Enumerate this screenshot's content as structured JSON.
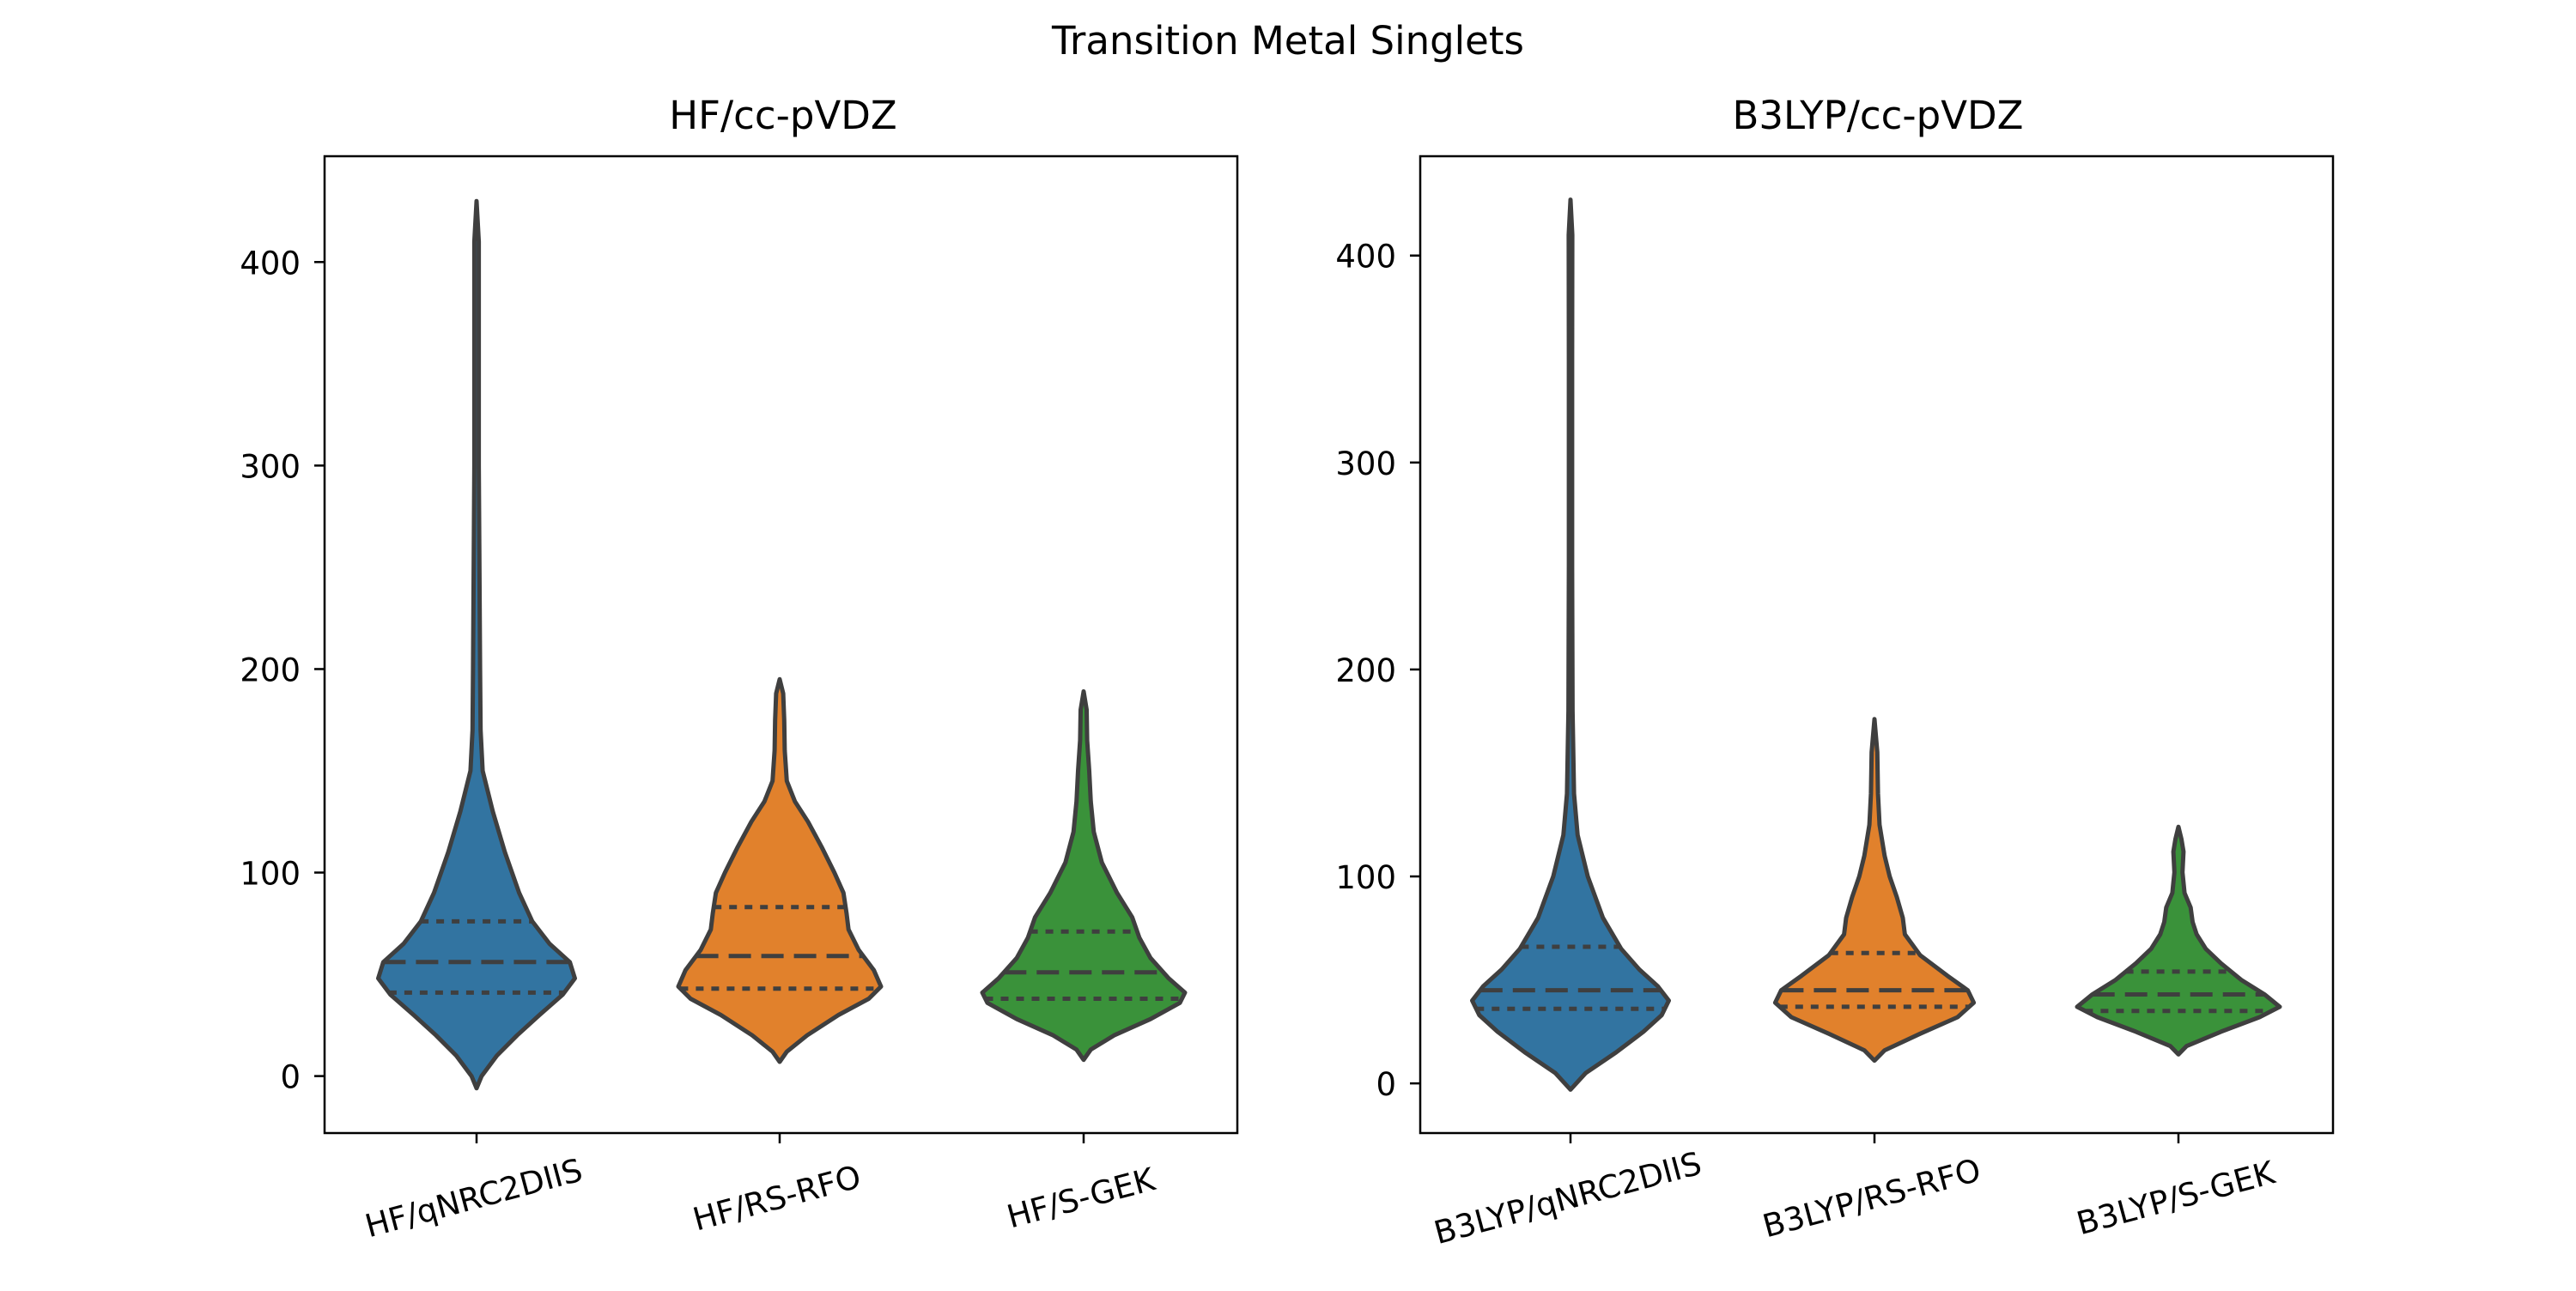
{
  "figure_title": "Transition Metal Singlets",
  "chart_data": [
    {
      "type": "violin",
      "title": "HF/cc-pVDZ",
      "xlabel": "",
      "ylabel": "",
      "ylim": [
        -28,
        452
      ],
      "yticks": [
        0,
        100,
        200,
        300,
        400
      ],
      "grid": false,
      "legend": "none",
      "categories": [
        "HF/qNRC2DIIS",
        "HF/RS-RFO",
        "HF/S-GEK"
      ],
      "violins": [
        {
          "category": "HF/qNRC2DIIS",
          "color": "#3274a1",
          "min": -6,
          "max": 430,
          "q1": 41,
          "median": 56,
          "q3": 76,
          "profile": [
            [
              -6,
              0
            ],
            [
              0,
              0.05
            ],
            [
              10,
              0.2
            ],
            [
              20,
              0.4
            ],
            [
              30,
              0.62
            ],
            [
              40,
              0.85
            ],
            [
              48,
              0.97
            ],
            [
              56,
              0.92
            ],
            [
              65,
              0.72
            ],
            [
              76,
              0.55
            ],
            [
              90,
              0.42
            ],
            [
              110,
              0.28
            ],
            [
              130,
              0.16
            ],
            [
              150,
              0.06
            ],
            [
              170,
              0.04
            ],
            [
              200,
              0.035
            ],
            [
              240,
              0.03
            ],
            [
              300,
              0.022
            ],
            [
              360,
              0.022
            ],
            [
              410,
              0.022
            ],
            [
              430,
              0
            ]
          ]
        },
        {
          "category": "HF/RS-RFO",
          "color": "#e1812c",
          "min": 7,
          "max": 195,
          "q1": 43,
          "median": 59,
          "q3": 83,
          "profile": [
            [
              7,
              0
            ],
            [
              12,
              0.07
            ],
            [
              20,
              0.27
            ],
            [
              30,
              0.58
            ],
            [
              38,
              0.88
            ],
            [
              44,
              1.0
            ],
            [
              52,
              0.93
            ],
            [
              62,
              0.78
            ],
            [
              72,
              0.68
            ],
            [
              80,
              0.66
            ],
            [
              90,
              0.63
            ],
            [
              100,
              0.54
            ],
            [
              112,
              0.42
            ],
            [
              125,
              0.28
            ],
            [
              135,
              0.15
            ],
            [
              145,
              0.07
            ],
            [
              160,
              0.05
            ],
            [
              175,
              0.045
            ],
            [
              188,
              0.035
            ],
            [
              195,
              0
            ]
          ]
        },
        {
          "category": "HF/S-GEK",
          "color": "#3a923a",
          "min": 8,
          "max": 189,
          "q1": 38,
          "median": 51,
          "q3": 71,
          "profile": [
            [
              8,
              0
            ],
            [
              13,
              0.07
            ],
            [
              20,
              0.3
            ],
            [
              28,
              0.66
            ],
            [
              36,
              0.95
            ],
            [
              41,
              1.0
            ],
            [
              48,
              0.84
            ],
            [
              58,
              0.66
            ],
            [
              68,
              0.55
            ],
            [
              78,
              0.48
            ],
            [
              90,
              0.33
            ],
            [
              105,
              0.18
            ],
            [
              120,
              0.1
            ],
            [
              135,
              0.07
            ],
            [
              150,
              0.055
            ],
            [
              165,
              0.035
            ],
            [
              180,
              0.03
            ],
            [
              189,
              0
            ]
          ]
        }
      ]
    },
    {
      "type": "violin",
      "title": "B3LYP/cc-pVDZ",
      "xlabel": "",
      "ylabel": "",
      "ylim": [
        -24,
        448
      ],
      "yticks": [
        0,
        100,
        200,
        300,
        400
      ],
      "grid": false,
      "legend": "none",
      "categories": [
        "B3LYP/qNRC2DIIS",
        "B3LYP/RS-RFO",
        "B3LYP/S-GEK"
      ],
      "violins": [
        {
          "category": "B3LYP/qNRC2DIIS",
          "color": "#3274a1",
          "min": -3,
          "max": 427,
          "q1": 36,
          "median": 45,
          "q3": 66,
          "profile": [
            [
              -3,
              0
            ],
            [
              5,
              0.15
            ],
            [
              15,
              0.45
            ],
            [
              25,
              0.72
            ],
            [
              33,
              0.9
            ],
            [
              40,
              0.97
            ],
            [
              47,
              0.86
            ],
            [
              55,
              0.68
            ],
            [
              65,
              0.5
            ],
            [
              80,
              0.32
            ],
            [
              100,
              0.17
            ],
            [
              120,
              0.07
            ],
            [
              140,
              0.035
            ],
            [
              180,
              0.02
            ],
            [
              250,
              0.016
            ],
            [
              350,
              0.016
            ],
            [
              410,
              0.018
            ],
            [
              427,
              0
            ]
          ]
        },
        {
          "category": "B3LYP/RS-RFO",
          "color": "#e1812c",
          "min": 11,
          "max": 176,
          "q1": 37,
          "median": 45,
          "q3": 63,
          "profile": [
            [
              11,
              0
            ],
            [
              16,
              0.1
            ],
            [
              24,
              0.45
            ],
            [
              32,
              0.82
            ],
            [
              39,
              0.98
            ],
            [
              45,
              0.92
            ],
            [
              52,
              0.72
            ],
            [
              62,
              0.45
            ],
            [
              72,
              0.3
            ],
            [
              80,
              0.28
            ],
            [
              90,
              0.22
            ],
            [
              100,
              0.15
            ],
            [
              110,
              0.1
            ],
            [
              125,
              0.05
            ],
            [
              140,
              0.035
            ],
            [
              160,
              0.028
            ],
            [
              176,
              0
            ]
          ]
        },
        {
          "category": "B3LYP/S-GEK",
          "color": "#3a923a",
          "min": 14,
          "max": 124,
          "q1": 35,
          "median": 43,
          "q3": 54,
          "profile": [
            [
              14,
              0
            ],
            [
              18,
              0.08
            ],
            [
              25,
              0.42
            ],
            [
              32,
              0.8
            ],
            [
              37,
              1.0
            ],
            [
              43,
              0.85
            ],
            [
              50,
              0.62
            ],
            [
              58,
              0.42
            ],
            [
              65,
              0.27
            ],
            [
              72,
              0.18
            ],
            [
              78,
              0.14
            ],
            [
              85,
              0.12
            ],
            [
              92,
              0.06
            ],
            [
              102,
              0.04
            ],
            [
              112,
              0.05
            ],
            [
              118,
              0.03
            ],
            [
              124,
              0
            ]
          ]
        }
      ]
    }
  ]
}
